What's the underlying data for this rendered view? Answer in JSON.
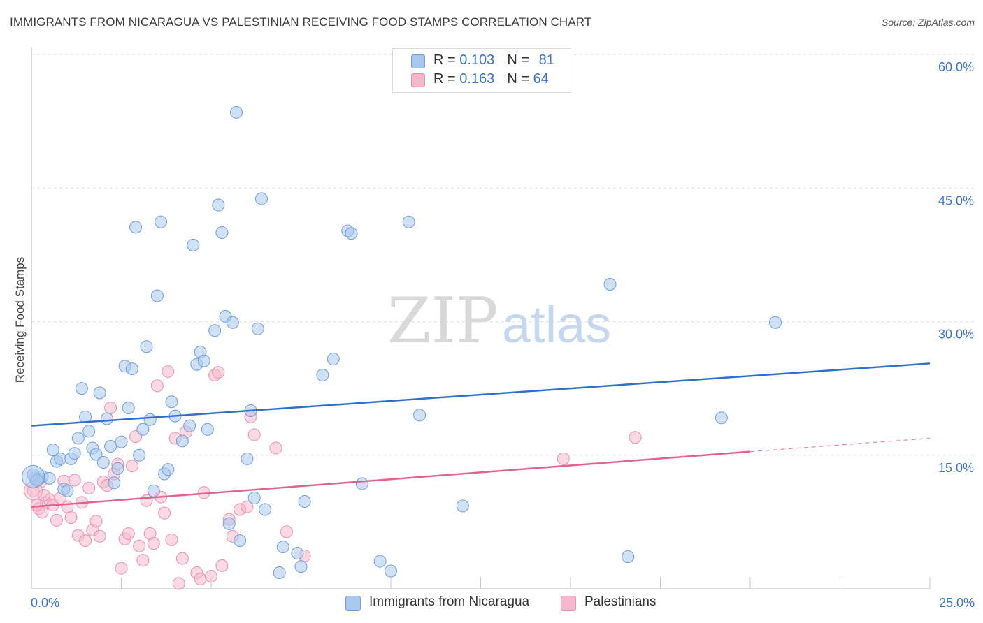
{
  "header": {
    "title": "IMMIGRANTS FROM NICARAGUA VS PALESTINIAN RECEIVING FOOD STAMPS CORRELATION CHART",
    "source": "Source: ZipAtlas.com"
  },
  "watermark": {
    "part1": "ZIP",
    "part2": "atlas"
  },
  "legend_top": {
    "rows": [
      {
        "r_label": "R = ",
        "r_value": "0.103",
        "n_label": "N = ",
        "n_value": "81"
      },
      {
        "r_label": "R = ",
        "r_value": "0.163",
        "n_label": "N = ",
        "n_value": "64"
      }
    ]
  },
  "legend_bottom": {
    "items": [
      "Immigrants from Nicaragua",
      "Palestinians"
    ]
  },
  "colors": {
    "blue_fill": "#a9c8ef",
    "blue_stroke": "#6f9ddd",
    "blue_line": "#2f6fcf",
    "pink_fill": "#f6b9cc",
    "pink_stroke": "#eb8fae",
    "pink_line": "#e0648f",
    "axis_label": "#3b73c8",
    "grid": "#dddddd"
  },
  "chart_data": {
    "type": "scatter",
    "title": "IMMIGRANTS FROM NICARAGUA VS PALESTINIAN RECEIVING FOOD STAMPS CORRELATION CHART",
    "xlabel": "",
    "ylabel": "Receiving Food Stamps",
    "xlim": [
      0,
      25
    ],
    "ylim": [
      0,
      60
    ],
    "x_tick_labels": [
      "0.0%",
      "25.0%"
    ],
    "y_tick_values": [
      15,
      30,
      45,
      60
    ],
    "y_tick_labels": [
      "15.0%",
      "30.0%",
      "45.0%",
      "60.0%"
    ],
    "grid": true,
    "legend_position": "top-center",
    "series": [
      {
        "name": "Immigrants from Nicaragua",
        "color": "#a9c8ef",
        "trend": {
          "x": [
            0,
            25
          ],
          "y": [
            18.3,
            25.3
          ]
        },
        "points": [
          [
            0.1,
            12.4
          ],
          [
            0.2,
            12.3
          ],
          [
            0.3,
            12.6
          ],
          [
            0.5,
            12.4
          ],
          [
            0.6,
            15.6
          ],
          [
            0.7,
            14.3
          ],
          [
            0.8,
            14.6
          ],
          [
            0.9,
            11.2
          ],
          [
            1.0,
            11.0
          ],
          [
            1.1,
            14.6
          ],
          [
            1.2,
            15.2
          ],
          [
            1.3,
            16.9
          ],
          [
            1.4,
            22.5
          ],
          [
            1.5,
            19.3
          ],
          [
            1.6,
            17.7
          ],
          [
            1.7,
            15.8
          ],
          [
            1.8,
            15.1
          ],
          [
            1.9,
            22.0
          ],
          [
            2.0,
            14.2
          ],
          [
            2.1,
            19.1
          ],
          [
            2.2,
            16.0
          ],
          [
            2.3,
            11.9
          ],
          [
            2.4,
            13.5
          ],
          [
            2.5,
            16.5
          ],
          [
            2.6,
            25.0
          ],
          [
            2.7,
            20.3
          ],
          [
            2.8,
            24.7
          ],
          [
            2.9,
            40.6
          ],
          [
            3.0,
            15.0
          ],
          [
            3.1,
            17.9
          ],
          [
            3.2,
            27.2
          ],
          [
            3.3,
            19.0
          ],
          [
            3.4,
            11.0
          ],
          [
            3.5,
            32.9
          ],
          [
            3.6,
            41.2
          ],
          [
            3.7,
            12.9
          ],
          [
            3.8,
            13.4
          ],
          [
            3.9,
            21.0
          ],
          [
            4.0,
            19.4
          ],
          [
            4.2,
            16.6
          ],
          [
            4.4,
            18.3
          ],
          [
            4.5,
            38.6
          ],
          [
            4.6,
            25.2
          ],
          [
            4.7,
            26.6
          ],
          [
            4.8,
            25.6
          ],
          [
            4.9,
            17.9
          ],
          [
            5.1,
            29.0
          ],
          [
            5.2,
            43.1
          ],
          [
            5.3,
            40.0
          ],
          [
            5.4,
            30.6
          ],
          [
            5.5,
            7.3
          ],
          [
            5.6,
            29.9
          ],
          [
            5.7,
            53.5
          ],
          [
            5.8,
            5.4
          ],
          [
            6.0,
            14.6
          ],
          [
            6.1,
            20.0
          ],
          [
            6.2,
            10.2
          ],
          [
            6.3,
            29.2
          ],
          [
            6.4,
            43.8
          ],
          [
            6.5,
            8.9
          ],
          [
            6.9,
            1.8
          ],
          [
            7.0,
            4.7
          ],
          [
            7.4,
            4.0
          ],
          [
            7.5,
            2.5
          ],
          [
            7.6,
            9.8
          ],
          [
            8.1,
            24.0
          ],
          [
            8.4,
            25.8
          ],
          [
            8.8,
            40.2
          ],
          [
            8.9,
            39.9
          ],
          [
            9.2,
            11.8
          ],
          [
            9.7,
            3.1
          ],
          [
            10.0,
            2.0
          ],
          [
            10.5,
            41.2
          ],
          [
            10.8,
            19.5
          ],
          [
            12.0,
            9.3
          ],
          [
            16.1,
            34.2
          ],
          [
            16.6,
            3.6
          ],
          [
            19.2,
            19.2
          ],
          [
            20.7,
            29.9
          ],
          [
            0.05,
            12.8
          ],
          [
            0.15,
            12.2
          ]
        ]
      },
      {
        "name": "Palestinians",
        "color": "#f6b9cc",
        "trend": {
          "x": [
            0,
            20
          ],
          "y": [
            9.2,
            15.4
          ]
        },
        "trend_dashed": {
          "x": [
            20,
            25
          ],
          "y": [
            15.4,
            16.9
          ]
        },
        "points": [
          [
            0.05,
            11.0
          ],
          [
            0.2,
            9.0
          ],
          [
            0.3,
            8.6
          ],
          [
            0.4,
            9.7
          ],
          [
            0.5,
            10.0
          ],
          [
            0.6,
            9.4
          ],
          [
            0.7,
            7.7
          ],
          [
            0.8,
            10.2
          ],
          [
            0.9,
            12.1
          ],
          [
            1.0,
            9.2
          ],
          [
            1.1,
            8.0
          ],
          [
            1.2,
            12.2
          ],
          [
            1.3,
            6.0
          ],
          [
            1.4,
            9.7
          ],
          [
            1.5,
            5.4
          ],
          [
            1.6,
            11.3
          ],
          [
            1.7,
            6.6
          ],
          [
            1.8,
            7.6
          ],
          [
            1.9,
            5.9
          ],
          [
            2.0,
            12.0
          ],
          [
            2.1,
            11.6
          ],
          [
            2.2,
            20.3
          ],
          [
            2.3,
            12.9
          ],
          [
            2.4,
            14.0
          ],
          [
            2.5,
            2.3
          ],
          [
            2.6,
            5.6
          ],
          [
            2.7,
            6.2
          ],
          [
            2.8,
            13.8
          ],
          [
            2.9,
            17.1
          ],
          [
            3.0,
            4.8
          ],
          [
            3.1,
            3.2
          ],
          [
            3.2,
            9.9
          ],
          [
            3.3,
            6.2
          ],
          [
            3.4,
            5.1
          ],
          [
            3.5,
            22.8
          ],
          [
            3.6,
            10.3
          ],
          [
            3.7,
            8.5
          ],
          [
            3.8,
            24.4
          ],
          [
            3.9,
            5.5
          ],
          [
            4.0,
            16.9
          ],
          [
            4.1,
            0.6
          ],
          [
            4.2,
            3.4
          ],
          [
            4.3,
            17.6
          ],
          [
            4.6,
            1.8
          ],
          [
            4.7,
            1.1
          ],
          [
            4.8,
            10.8
          ],
          [
            5.0,
            1.4
          ],
          [
            5.1,
            24.0
          ],
          [
            5.2,
            24.3
          ],
          [
            5.3,
            2.6
          ],
          [
            5.5,
            7.8
          ],
          [
            5.6,
            5.9
          ],
          [
            5.8,
            8.9
          ],
          [
            6.0,
            9.2
          ],
          [
            6.1,
            19.3
          ],
          [
            6.2,
            17.3
          ],
          [
            6.8,
            15.8
          ],
          [
            7.1,
            6.4
          ],
          [
            7.6,
            3.7
          ],
          [
            14.8,
            14.6
          ],
          [
            16.8,
            17.0
          ],
          [
            0.15,
            9.4
          ],
          [
            0.35,
            10.5
          ],
          [
            0.25,
            12.0
          ]
        ]
      }
    ]
  }
}
